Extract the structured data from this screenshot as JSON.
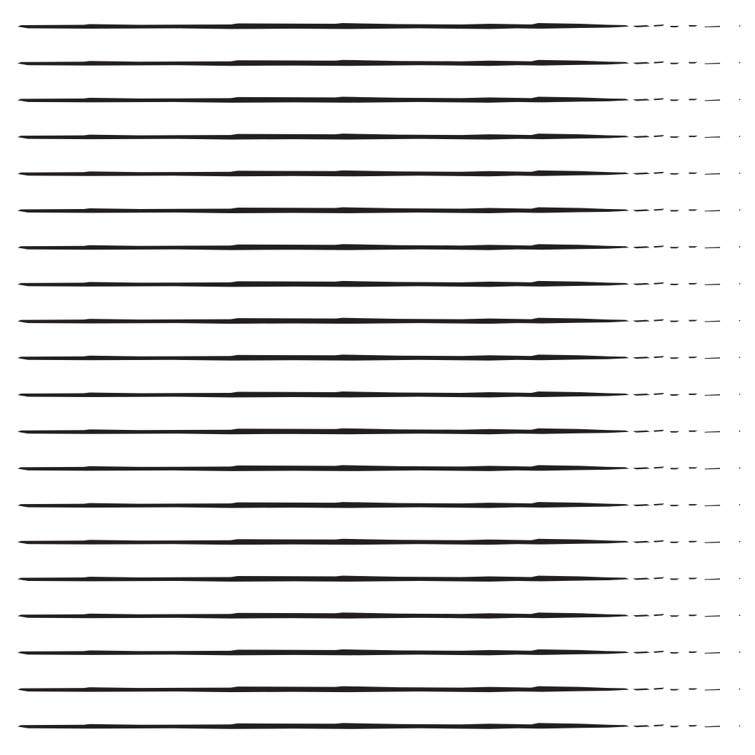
{
  "pattern": {
    "background_color": "#ffffff",
    "ink_color": "#231f20",
    "motif": "horizontal-brush-strokes",
    "stroke_count": 20
  }
}
